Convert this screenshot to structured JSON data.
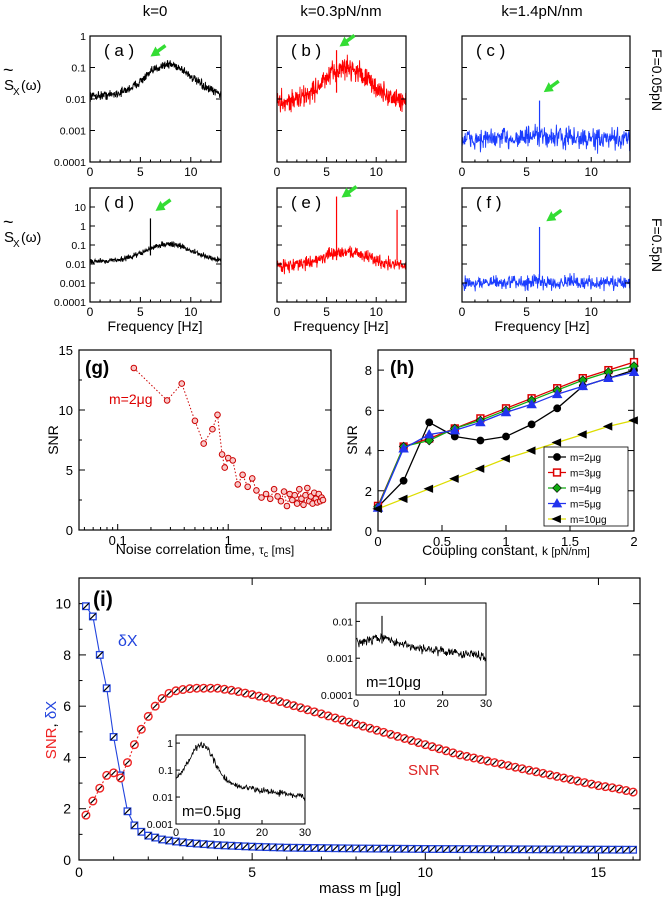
{
  "figure": {
    "col_titles": [
      "k=0",
      "k=0.3pN/nm",
      "k=1.4pN/nm"
    ],
    "row_titles": [
      "F=0.05pN",
      "F=0.5pN"
    ],
    "spectrum_ylabel": "S",
    "spectrum_ylabel_sub": "X",
    "spectrum_ylabel_tail": "(ω)",
    "tilde": "~",
    "freq_xlabel": "Frequency [Hz]"
  },
  "colors": {
    "black": "#000000",
    "red": "#ff0000",
    "blue": "#1a3cff",
    "green": "#33dd33",
    "yellow": "#eeee00",
    "darkred": "#cc0000"
  },
  "chart_data": [
    {
      "id": "a",
      "type": "line",
      "label": "( a )",
      "series_color": "black",
      "x_ticks": [
        "0",
        "5",
        "10"
      ],
      "y_ticks": [
        "1",
        "0.1",
        "0.01",
        "0.001",
        "0.0001"
      ],
      "xlim": [
        0,
        13
      ],
      "ylim_log10": [
        -4,
        0
      ],
      "base_log10": -1.9,
      "peak_log10": -0.9,
      "peak_x": 7.8,
      "noise": 0.12,
      "spikes": [],
      "arrow_at": [
        6.1,
        -0.62
      ]
    },
    {
      "id": "b",
      "type": "line",
      "label": "( b )",
      "series_color": "red",
      "x_ticks": [
        "0",
        "5",
        "10"
      ],
      "y_ticks": [],
      "xlim": [
        0,
        13
      ],
      "ylim_log10": [
        -4,
        0
      ],
      "base_log10": -2.1,
      "peak_log10": -1.0,
      "peak_x": 7.0,
      "noise": 0.3,
      "spikes": [
        {
          "x": 6.0,
          "y_log10": -0.45
        }
      ],
      "arrow_at": [
        6.4,
        -0.3
      ]
    },
    {
      "id": "c",
      "type": "line",
      "label": "( c )",
      "series_color": "blue",
      "x_ticks": [
        "0",
        "5",
        "10"
      ],
      "y_ticks": [],
      "xlim": [
        0,
        13
      ],
      "ylim_log10": [
        -4,
        0
      ],
      "base_log10": -3.3,
      "peak_log10": -3.2,
      "peak_x": 6.0,
      "noise": 0.3,
      "spikes": [
        {
          "x": 6.0,
          "y_log10": -2.05
        }
      ],
      "arrow_at": [
        6.4,
        -1.75
      ]
    },
    {
      "id": "d",
      "type": "line",
      "label": "( d )",
      "series_color": "black",
      "x_ticks": [
        "0",
        "5",
        "10"
      ],
      "y_ticks": [
        "10",
        "1",
        "0.1",
        "0.01",
        "0.001",
        "0.0001"
      ],
      "xlim": [
        0,
        13
      ],
      "ylim_log10": [
        -4,
        2
      ],
      "base_log10": -1.85,
      "peak_log10": -0.95,
      "peak_x": 7.8,
      "noise": 0.12,
      "spikes": [
        {
          "x": 6.0,
          "y_log10": 0.4
        }
      ],
      "arrow_at": [
        6.6,
        0.85
      ]
    },
    {
      "id": "e",
      "type": "line",
      "label": "( e )",
      "series_color": "red",
      "x_ticks": [
        "0",
        "5",
        "10"
      ],
      "y_ticks": [],
      "xlim": [
        0,
        13
      ],
      "ylim_log10": [
        -4,
        2
      ],
      "base_log10": -2.1,
      "peak_log10": -1.35,
      "peak_x": 7.0,
      "noise": 0.28,
      "spikes": [
        {
          "x": 6.0,
          "y_log10": 1.55
        },
        {
          "x": 12.1,
          "y_log10": 0.85
        }
      ],
      "arrow_at": [
        6.6,
        1.55
      ]
    },
    {
      "id": "f",
      "type": "line",
      "label": "( f )",
      "series_color": "blue",
      "x_ticks": [
        "0",
        "5",
        "10"
      ],
      "y_ticks": [],
      "xlim": [
        0,
        13
      ],
      "ylim_log10": [
        -4,
        2
      ],
      "base_log10": -3.0,
      "peak_log10": -2.95,
      "peak_x": 6.0,
      "noise": 0.32,
      "spikes": [
        {
          "x": 6.0,
          "y_log10": -0.05
        }
      ],
      "arrow_at": [
        6.6,
        0.3
      ]
    },
    {
      "id": "g",
      "type": "scatter",
      "label": "(g)",
      "annotation": "m=2μg",
      "ylabel": "SNR",
      "xlabel": "Noise correlation time,",
      "xlabel_sym": "τ",
      "xlabel_sub": "c",
      "xlabel_unit": "[ms]",
      "xlim_log10": [
        -1.35,
        0.93
      ],
      "ylim": [
        0,
        15
      ],
      "x_ticks": [
        {
          "v": 0.1,
          "label": "0.1"
        },
        {
          "v": 1,
          "label": "1"
        }
      ],
      "y_ticks": [
        {
          "v": 0,
          "label": "0"
        },
        {
          "v": 5,
          "label": "5"
        },
        {
          "v": 10,
          "label": "10"
        },
        {
          "v": 15,
          "label": "15"
        }
      ],
      "x": [
        0.14,
        0.28,
        0.38,
        0.5,
        0.6,
        0.72,
        0.8,
        0.88,
        0.93,
        1.0,
        1.1,
        1.22,
        1.35,
        1.5,
        1.65,
        1.8,
        2.0,
        2.2,
        2.4,
        2.6,
        2.8,
        3.0,
        3.2,
        3.4,
        3.6,
        3.8,
        4.0,
        4.2,
        4.4,
        4.6,
        4.8,
        5.0,
        5.2,
        5.4,
        5.6,
        5.8,
        6.0,
        6.2,
        6.4,
        6.6,
        6.8,
        7.0,
        7.2
      ],
      "y": [
        13.5,
        10.8,
        12.2,
        9.1,
        7.2,
        8.4,
        9.6,
        6.3,
        5.2,
        6.0,
        5.8,
        3.8,
        4.6,
        3.6,
        4.3,
        3.3,
        2.7,
        3.0,
        2.6,
        3.4,
        2.8,
        2.4,
        3.2,
        2.0,
        3.0,
        2.5,
        2.9,
        2.2,
        3.4,
        2.6,
        2.1,
        2.9,
        3.5,
        2.4,
        2.8,
        2.2,
        3.1,
        2.6,
        2.3,
        3.0,
        2.4,
        2.7,
        2.5
      ]
    },
    {
      "id": "h",
      "type": "line",
      "label": "(h)",
      "ylabel": "SNR",
      "xlabel": "Coupling constant,",
      "xlabel_sym": "k",
      "xlabel_unit": "[pN/nm]",
      "xlim": [
        0,
        2
      ],
      "ylim": [
        0,
        9
      ],
      "x_ticks": [
        {
          "v": 0,
          "label": "0"
        },
        {
          "v": 0.5,
          "label": "0.5"
        },
        {
          "v": 1,
          "label": "1"
        },
        {
          "v": 1.5,
          "label": "1.5"
        },
        {
          "v": 2,
          "label": "2"
        }
      ],
      "y_ticks": [
        {
          "v": 0,
          "label": "0"
        },
        {
          "v": 2,
          "label": "2"
        },
        {
          "v": 4,
          "label": "4"
        },
        {
          "v": 6,
          "label": "6"
        },
        {
          "v": 8,
          "label": "8"
        }
      ],
      "x": [
        0,
        0.2,
        0.4,
        0.6,
        0.8,
        1.0,
        1.2,
        1.4,
        1.6,
        1.8,
        2.0
      ],
      "series": [
        {
          "name": "m=2μg",
          "color": "#000000",
          "marker": "circle",
          "values": [
            1.2,
            2.5,
            5.4,
            4.7,
            4.5,
            4.7,
            5.3,
            6.1,
            7.2,
            7.6,
            8.0
          ]
        },
        {
          "name": "m=3μg",
          "color": "#dd0000",
          "marker": "square",
          "values": [
            1.25,
            4.2,
            4.6,
            5.1,
            5.6,
            6.1,
            6.6,
            7.1,
            7.6,
            8.0,
            8.4
          ]
        },
        {
          "name": "m=4μg",
          "color": "#11aa11",
          "marker": "diamond",
          "values": [
            1.2,
            4.2,
            4.5,
            5.1,
            5.5,
            6.0,
            6.5,
            7.0,
            7.5,
            7.9,
            8.2
          ]
        },
        {
          "name": "m=5μg",
          "color": "#2233ee",
          "marker": "triangle",
          "values": [
            1.15,
            4.1,
            4.8,
            5.0,
            5.4,
            5.9,
            6.3,
            6.8,
            7.2,
            7.6,
            7.9
          ]
        },
        {
          "name": "m=10μg",
          "color": "#dddd00",
          "marker": "triangle-left",
          "values": [
            1.1,
            1.6,
            2.1,
            2.6,
            3.1,
            3.6,
            4.0,
            4.4,
            4.8,
            5.2,
            5.5
          ]
        }
      ]
    },
    {
      "id": "i",
      "type": "line",
      "label": "(i)",
      "ylabel_a": "SNR",
      "ylabel_sep": ", ",
      "ylabel_b": "δX",
      "xlabel": "mass  m [μg]",
      "xlim": [
        0,
        16.2
      ],
      "ylim": [
        0,
        11
      ],
      "x_ticks": [
        {
          "v": 0,
          "label": "0"
        },
        {
          "v": 5,
          "label": "5"
        },
        {
          "v": 10,
          "label": "10"
        },
        {
          "v": 15,
          "label": "15"
        }
      ],
      "y_ticks": [
        {
          "v": 0,
          "label": "0"
        },
        {
          "v": 2,
          "label": "2"
        },
        {
          "v": 4,
          "label": "4"
        },
        {
          "v": 6,
          "label": "6"
        },
        {
          "v": 8,
          "label": "8"
        },
        {
          "v": 10,
          "label": "10"
        }
      ],
      "series": [
        {
          "name": "δX",
          "label": "δX",
          "color": "#2244dd",
          "marker": "square",
          "x": [
            0.2,
            0.4,
            0.6,
            0.8,
            1.0,
            1.2,
            1.4,
            1.6,
            1.8,
            2.0,
            2.4,
            2.8,
            3.2,
            3.6,
            4.0,
            5.0,
            6.0,
            8.0,
            10.0,
            12.0,
            14.0,
            16.0
          ],
          "values": [
            9.9,
            9.5,
            8.0,
            6.7,
            4.8,
            3.3,
            1.9,
            1.35,
            1.1,
            0.95,
            0.8,
            0.72,
            0.66,
            0.62,
            0.58,
            0.52,
            0.48,
            0.45,
            0.43,
            0.42,
            0.41,
            0.4
          ]
        },
        {
          "name": "SNR",
          "label": "SNR",
          "color": "#ee2222",
          "marker": "circle",
          "x": [
            0.2,
            0.4,
            0.6,
            0.8,
            1.0,
            1.2,
            1.4,
            1.6,
            1.8,
            2.0,
            2.2,
            2.4,
            2.6,
            2.8,
            3.0,
            3.3,
            3.6,
            4.0,
            4.5,
            5.0,
            5.5,
            6.0,
            6.5,
            7.0,
            7.5,
            8.0,
            8.5,
            9.0,
            9.5,
            10.0,
            10.5,
            11.0,
            11.5,
            12.0,
            12.5,
            13.0,
            13.5,
            14.0,
            14.5,
            15.0,
            15.5,
            16.0
          ],
          "values": [
            1.75,
            2.3,
            2.8,
            3.3,
            3.4,
            3.2,
            3.8,
            4.5,
            5.1,
            5.6,
            6.0,
            6.3,
            6.5,
            6.6,
            6.65,
            6.7,
            6.7,
            6.7,
            6.6,
            6.45,
            6.3,
            6.1,
            5.9,
            5.7,
            5.5,
            5.3,
            5.1,
            4.9,
            4.7,
            4.5,
            4.3,
            4.1,
            3.95,
            3.8,
            3.65,
            3.5,
            3.35,
            3.2,
            3.05,
            2.9,
            2.8,
            2.65
          ]
        }
      ],
      "insets": [
        {
          "id": "i1",
          "label": "m=10μg",
          "x_ticks": [
            "0",
            "10",
            "20",
            "30"
          ],
          "y_ticks": [
            "0.01",
            "0.001",
            "0.0001"
          ],
          "xlim": [
            0,
            30
          ],
          "ylim_log10": [
            -4,
            -1.5
          ],
          "base_log10": -2.6,
          "peak_log10": -2.45,
          "peak_x": 6,
          "tail_log10": -2.95,
          "spike_x": 6,
          "spike_log10": -1.85
        },
        {
          "id": "i2",
          "label": "m=0.5μg",
          "x_ticks": [
            "0",
            "10",
            "20",
            "30"
          ],
          "y_ticks": [
            "1",
            "0.1",
            "0.01",
            "0.001"
          ],
          "xlim": [
            0,
            30
          ],
          "ylim_log10": [
            -3,
            0.3
          ],
          "base_log10": -1.4,
          "peak_log10": -0.05,
          "peak_x": 6,
          "tail_log10": -2.0,
          "spike_x": null,
          "spike_log10": null
        }
      ]
    }
  ]
}
